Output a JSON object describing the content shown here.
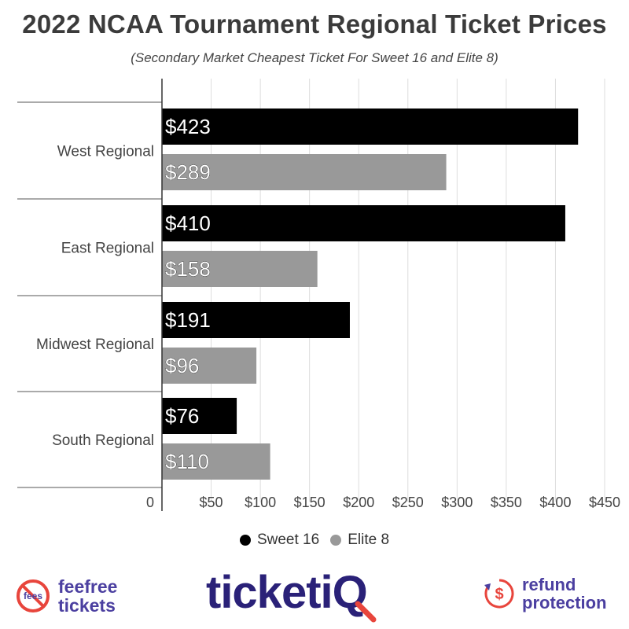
{
  "chart_data": {
    "type": "bar",
    "orientation": "horizontal",
    "title": "2022 NCAA Tournament Regional Ticket Prices",
    "subtitle": "(Secondary Market Cheapest Ticket For Sweet 16 and Elite 8)",
    "categories": [
      "West Regional",
      "East Regional",
      "Midwest Regional",
      "South Regional"
    ],
    "series": [
      {
        "name": "Sweet 16",
        "values": [
          423,
          410,
          191,
          76
        ],
        "labels": [
          "$423",
          "$410",
          "$191",
          "$76"
        ],
        "color": "#000000"
      },
      {
        "name": "Elite 8",
        "values": [
          289,
          158,
          96,
          110
        ],
        "labels": [
          "$289",
          "$158",
          "$96",
          "$110"
        ],
        "color": "#999999"
      }
    ],
    "xlim": [
      0,
      450
    ],
    "xticks": [
      0,
      50,
      100,
      150,
      200,
      250,
      300,
      350,
      400,
      450
    ],
    "xtick_labels": [
      "0",
      "$50",
      "$100",
      "$150",
      "$200",
      "$250",
      "$300",
      "$350",
      "$400",
      "$450"
    ],
    "grid": true,
    "legend_position": "bottom"
  },
  "footer": {
    "feefree_badge": "fees",
    "feefree_line1": "feefree",
    "feefree_line2": "tickets",
    "ticketiq_main": "ticketi",
    "ticketiq_q": "Q",
    "refund_symbol": "$",
    "refund_line1": "refund",
    "refund_line2": "protection",
    "brand_color": "#4b3fa0",
    "accent_color": "#e8453c"
  }
}
